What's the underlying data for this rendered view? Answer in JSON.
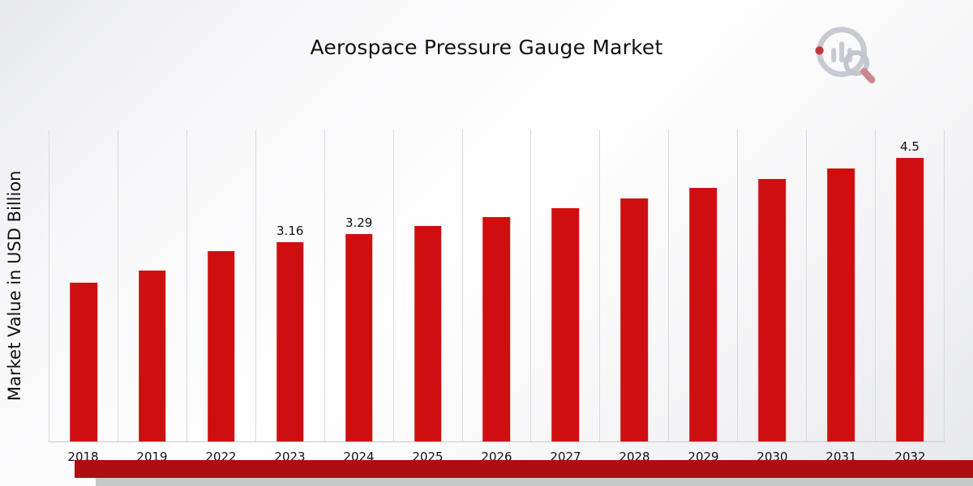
{
  "page": {
    "title": "Aerospace Pressure Gauge Market"
  },
  "chart_data": {
    "type": "bar",
    "title": "Aerospace Pressure Gauge Market",
    "xlabel": "",
    "ylabel": "Market Value in USD Billion",
    "categories": [
      "2018",
      "2019",
      "2022",
      "2023",
      "2024",
      "2025",
      "2026",
      "2027",
      "2028",
      "2029",
      "2030",
      "2031",
      "2032"
    ],
    "values": [
      2.52,
      2.71,
      3.02,
      3.16,
      3.29,
      3.42,
      3.56,
      3.7,
      3.86,
      4.02,
      4.17,
      4.33,
      4.5
    ],
    "point_labels": {
      "2023": "3.16",
      "2024": "3.29",
      "2032": "4.5"
    },
    "ylim": [
      0,
      4.95
    ],
    "grid": "vertical",
    "legend": "none",
    "bar_color": "#cf0f0f"
  },
  "footer": {
    "accent_color": "#ae0d12"
  },
  "logo": {
    "name": "market-research-brand-logo"
  }
}
